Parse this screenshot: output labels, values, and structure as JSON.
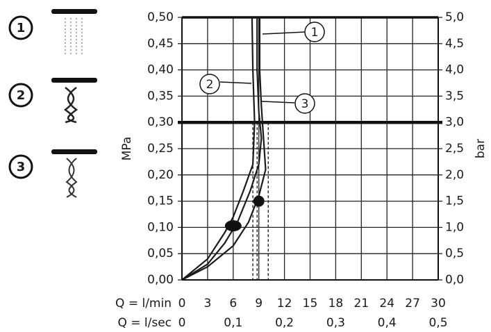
{
  "chart_data": {
    "type": "line",
    "y_label": "MPa",
    "y2_label": "bar",
    "x_label": "Q = l/min",
    "x2_label": "Q = l/sec",
    "xlim": [
      0,
      30
    ],
    "xticks": [
      0,
      3,
      6,
      9,
      12,
      15,
      18,
      21,
      24,
      27,
      30
    ],
    "x2lim": [
      0,
      0.5
    ],
    "x2ticks": [
      {
        "value": 0,
        "label": "0"
      },
      {
        "value": 0.1,
        "label": "0,1"
      },
      {
        "value": 0.2,
        "label": "0,2"
      },
      {
        "value": 0.3,
        "label": "0,3"
      },
      {
        "value": 0.4,
        "label": "0,4"
      },
      {
        "value": 0.5,
        "label": "0,5"
      }
    ],
    "ylim": [
      0,
      0.5
    ],
    "yticks": [
      {
        "value": 0,
        "label": "0,00"
      },
      {
        "value": 0.05,
        "label": "0,05"
      },
      {
        "value": 0.1,
        "label": "0,10"
      },
      {
        "value": 0.15,
        "label": "0,15"
      },
      {
        "value": 0.2,
        "label": "0,20"
      },
      {
        "value": 0.25,
        "label": "0,25"
      },
      {
        "value": 0.3,
        "label": "0,30"
      },
      {
        "value": 0.35,
        "label": "0,35"
      },
      {
        "value": 0.4,
        "label": "0,40"
      },
      {
        "value": 0.45,
        "label": "0,45"
      },
      {
        "value": 0.5,
        "label": "0,50"
      }
    ],
    "y2lim": [
      0,
      5
    ],
    "y2ticks": [
      {
        "value": 0,
        "label": "0,0"
      },
      {
        "value": 0.5,
        "label": "0,5"
      },
      {
        "value": 1,
        "label": "1,0"
      },
      {
        "value": 1.5,
        "label": "1,5"
      },
      {
        "value": 2,
        "label": "2,0"
      },
      {
        "value": 2.5,
        "label": "2,5"
      },
      {
        "value": 3,
        "label": "3,0"
      },
      {
        "value": 3.5,
        "label": "3,5"
      },
      {
        "value": 4,
        "label": "4,0"
      },
      {
        "value": 4.5,
        "label": "4,5"
      },
      {
        "value": 5,
        "label": "5,0"
      }
    ],
    "grid": true,
    "series": [
      {
        "name": "1",
        "color": "#1a1a1a",
        "x": [
          0,
          3,
          5,
          6.5,
          8,
          9,
          9.3,
          9,
          8.8,
          8.8
        ],
        "values": [
          0,
          0.03,
          0.07,
          0.11,
          0.17,
          0.22,
          0.27,
          0.32,
          0.4,
          0.5
        ]
      },
      {
        "name": "2",
        "color": "#1a1a1a",
        "x": [
          0,
          3,
          5,
          6,
          7.2,
          8.3,
          8.5,
          8.3,
          8.2
        ],
        "values": [
          0,
          0.04,
          0.09,
          0.12,
          0.17,
          0.22,
          0.3,
          0.4,
          0.5
        ]
      },
      {
        "name": "3",
        "color": "#1a1a1a",
        "x": [
          0,
          3,
          6,
          7.8,
          9,
          9.8,
          9.5,
          9.3,
          9.1,
          9.1
        ],
        "values": [
          0,
          0.025,
          0.065,
          0.11,
          0.16,
          0.21,
          0.28,
          0.33,
          0.4,
          0.5
        ]
      }
    ],
    "markers": [
      {
        "x": 6,
        "y": 0.103
      },
      {
        "x": 9,
        "y": 0.15
      }
    ],
    "reference_y": 0.3,
    "reference_x": [
      8.3,
      8.8,
      10.1
    ]
  }
}
